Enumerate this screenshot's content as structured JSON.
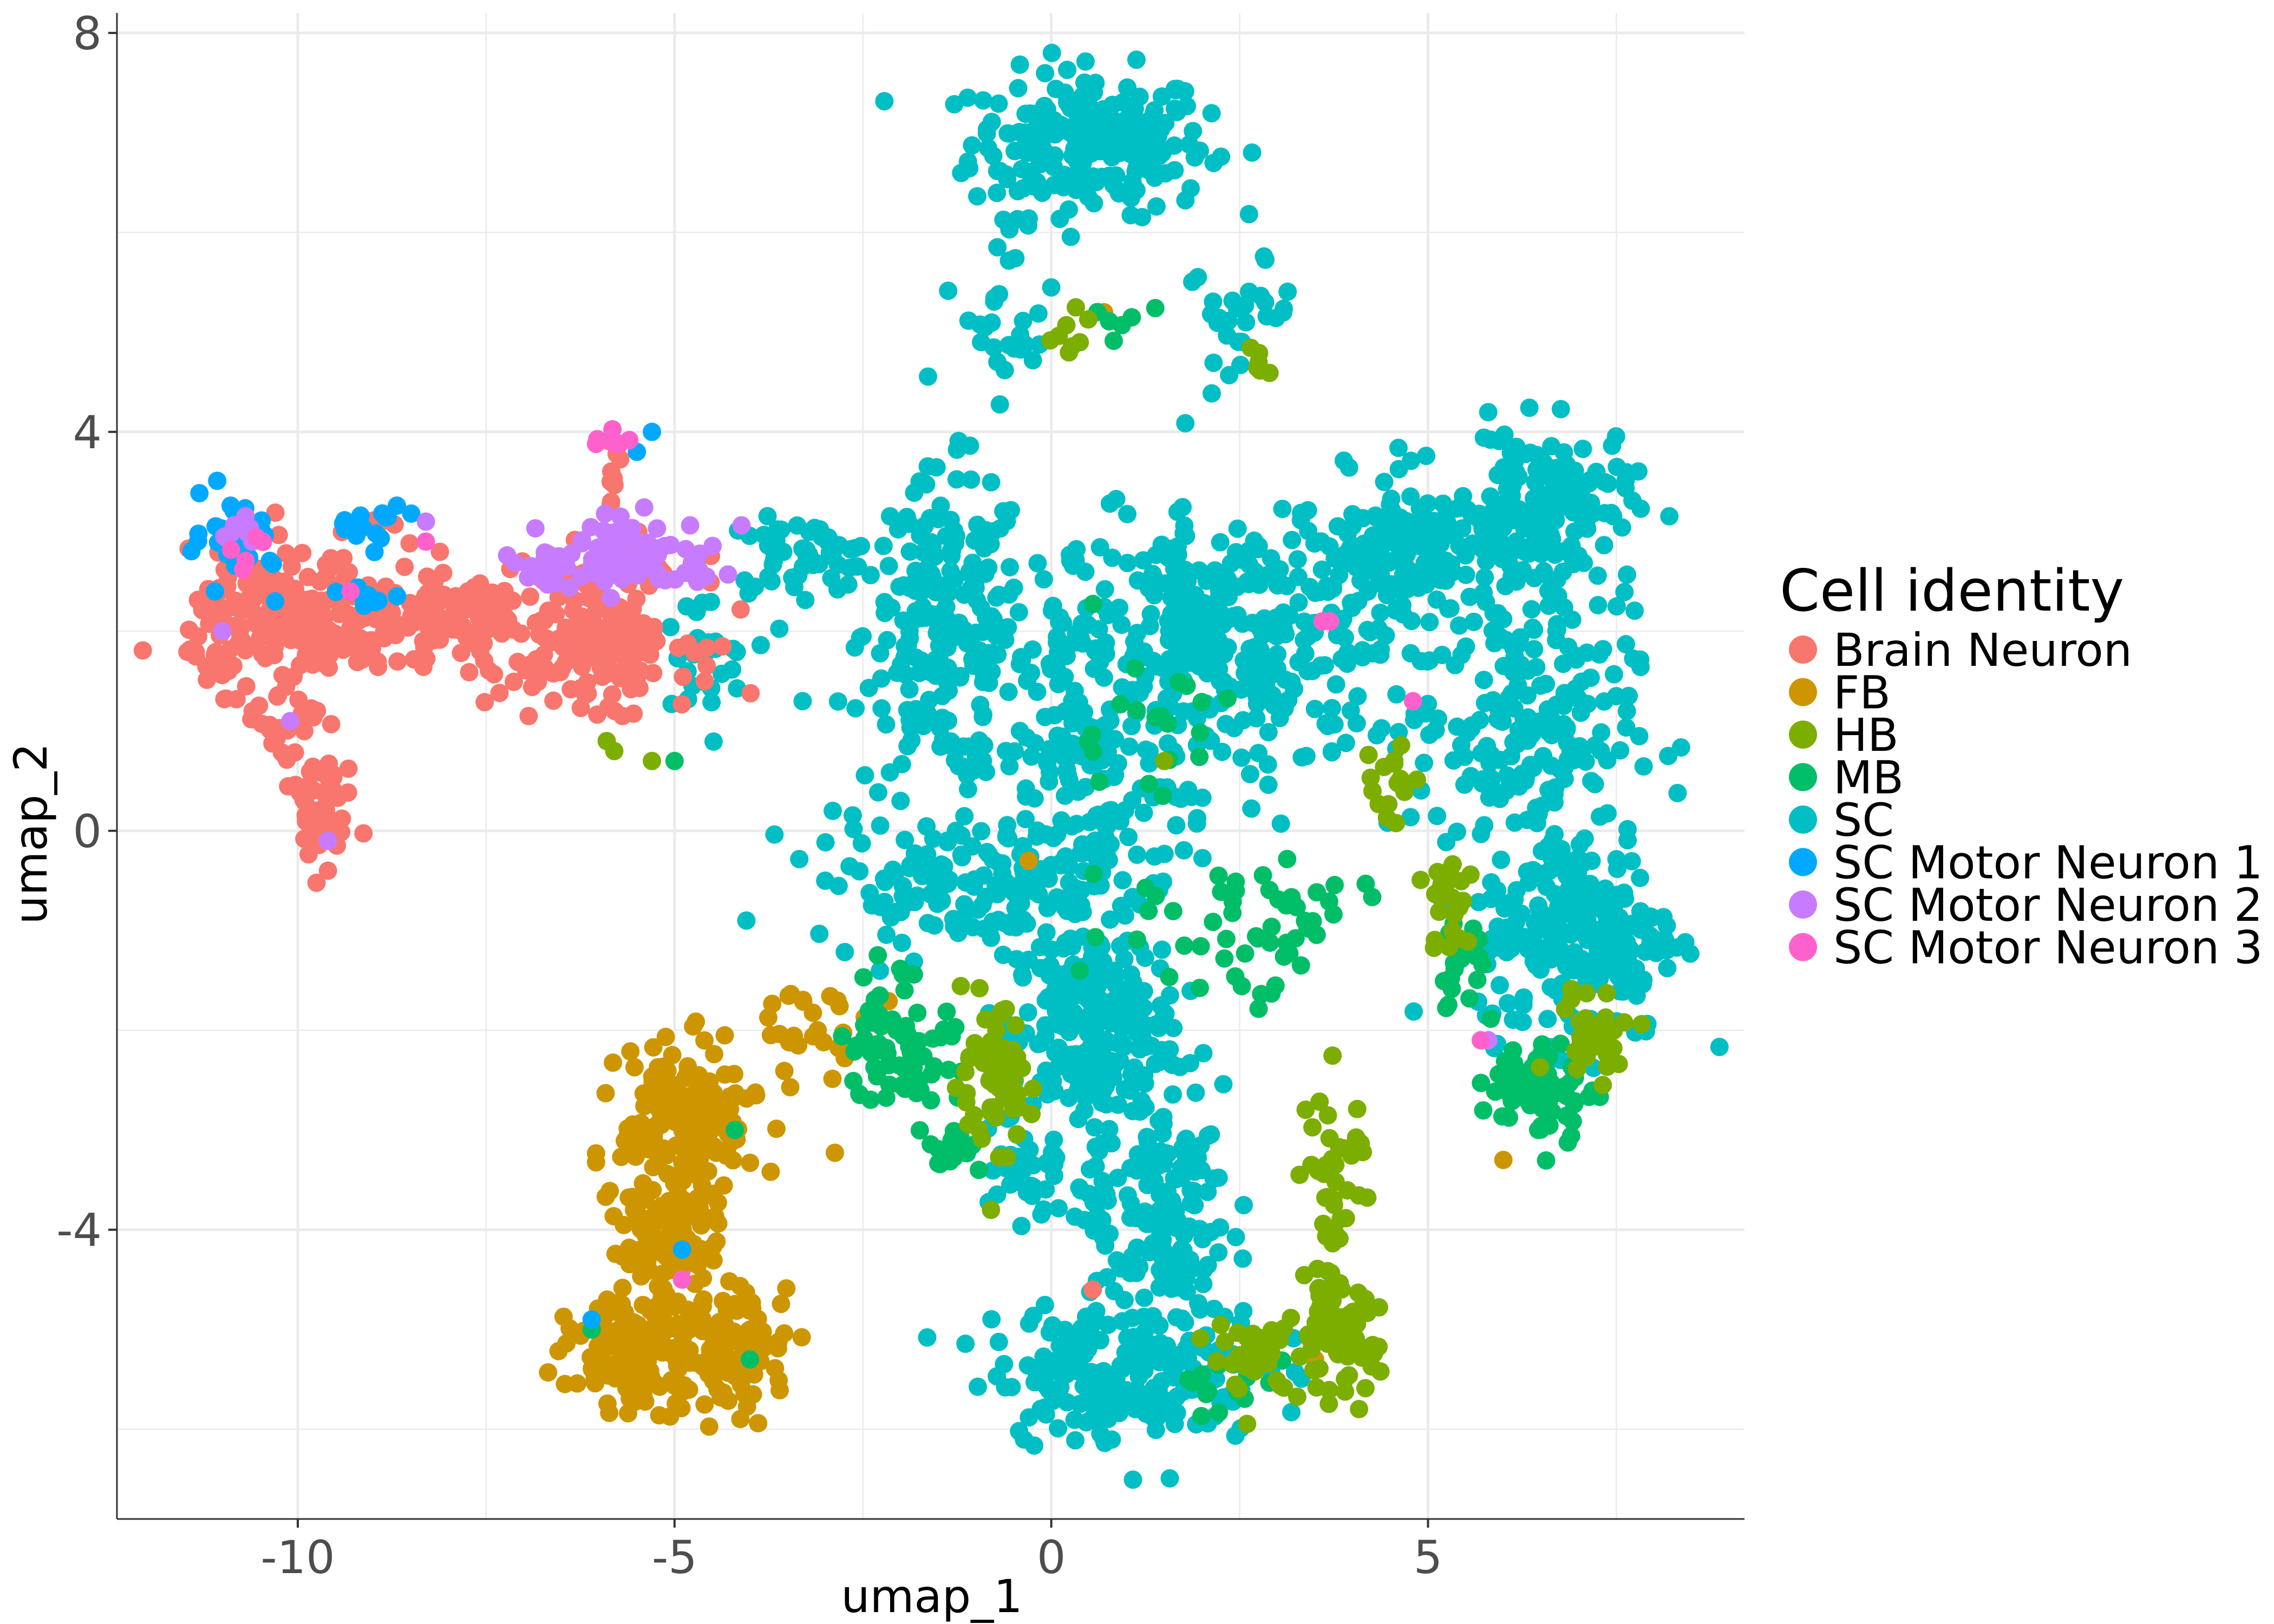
{
  "chart_data": {
    "type": "scatter",
    "title": "",
    "xlabel": "umap_1",
    "ylabel": "umap_2",
    "xlim": [
      -12.4,
      9.2
    ],
    "ylim": [
      -6.9,
      8.2
    ],
    "x_ticks": [
      -10,
      -5,
      0,
      5
    ],
    "x_tick_labels": [
      "-10",
      "-5",
      "0",
      "5"
    ],
    "y_ticks": [
      8,
      4,
      0,
      -4
    ],
    "y_tick_labels": [
      "8",
      "4",
      "0",
      "-4"
    ],
    "grid": true,
    "legend": {
      "title": "Cell identity",
      "placement": "right",
      "entries": [
        "Brain Neuron",
        "FB",
        "HB",
        "MB",
        "SC",
        "SC Motor Neuron 1",
        "SC Motor Neuron 2",
        "SC Motor Neuron 3"
      ]
    },
    "series": [
      {
        "name": "Brain Neuron",
        "color": "#F8766D",
        "regions": [
          {
            "cx": -10.0,
            "cy": 2.1,
            "rx": 1.2,
            "ry": 0.55,
            "n": 230
          },
          {
            "cx": -7.9,
            "cy": 2.1,
            "rx": 0.9,
            "ry": 0.45,
            "n": 90
          },
          {
            "cx": -6.0,
            "cy": 2.0,
            "rx": 1.05,
            "ry": 0.6,
            "n": 200
          },
          {
            "cx": -9.7,
            "cy": 0.2,
            "rx": 0.35,
            "ry": 0.5,
            "n": 45
          },
          {
            "cx": -10.2,
            "cy": 1.0,
            "rx": 0.3,
            "ry": 0.45,
            "n": 25
          },
          {
            "cx": -5.8,
            "cy": 3.6,
            "rx": 0.15,
            "ry": 0.3,
            "n": 10
          },
          {
            "cx": -8.9,
            "cy": 3.1,
            "rx": 0.25,
            "ry": 0.12,
            "n": 8
          }
        ],
        "points": [
          [
            -9.6,
            -0.4
          ],
          [
            -10.6,
            1.2
          ],
          [
            -4.6,
            1.5
          ],
          [
            0.55,
            -4.6
          ],
          [
            -4.9,
            -4.4
          ]
        ]
      },
      {
        "name": "FB",
        "color": "#CD9600",
        "regions": [
          {
            "cx": -4.8,
            "cy": -2.9,
            "rx": 0.75,
            "ry": 0.6,
            "n": 170
          },
          {
            "cx": -5.1,
            "cy": -4.1,
            "rx": 0.6,
            "ry": 0.6,
            "n": 110
          },
          {
            "cx": -5.45,
            "cy": -5.25,
            "rx": 0.8,
            "ry": 0.45,
            "n": 150
          },
          {
            "cx": -4.1,
            "cy": -5.2,
            "rx": 0.55,
            "ry": 0.55,
            "n": 80
          },
          {
            "cx": -3.2,
            "cy": -2.0,
            "rx": 0.7,
            "ry": 0.35,
            "n": 25
          }
        ],
        "points": [
          [
            0.7,
            5.2
          ],
          [
            -0.3,
            -0.3
          ],
          [
            6.0,
            -3.3
          ],
          [
            3.5,
            -5.3
          ],
          [
            -3.1,
            -2.0
          ]
        ]
      },
      {
        "name": "HB",
        "color": "#7CAE00",
        "regions": [
          {
            "cx": -0.8,
            "cy": -2.5,
            "rx": 0.45,
            "ry": 0.55,
            "n": 65
          },
          {
            "cx": 3.8,
            "cy": -5.1,
            "rx": 0.45,
            "ry": 0.45,
            "n": 70
          },
          {
            "cx": 3.75,
            "cy": -3.6,
            "rx": 0.35,
            "ry": 1.0,
            "n": 45
          },
          {
            "cx": 2.7,
            "cy": -5.25,
            "rx": 0.5,
            "ry": 0.35,
            "n": 30
          },
          {
            "cx": 7.2,
            "cy": -2.0,
            "rx": 0.5,
            "ry": 0.35,
            "n": 30
          },
          {
            "cx": 5.3,
            "cy": -0.8,
            "rx": 0.35,
            "ry": 0.6,
            "n": 25
          },
          {
            "cx": 0.3,
            "cy": 5.0,
            "rx": 0.3,
            "ry": 0.3,
            "n": 8
          },
          {
            "cx": 2.8,
            "cy": 4.7,
            "rx": 0.15,
            "ry": 0.25,
            "n": 6
          },
          {
            "cx": 4.5,
            "cy": 0.5,
            "rx": 0.35,
            "ry": 0.35,
            "n": 15
          }
        ],
        "points": [
          [
            -5.8,
            0.8
          ],
          [
            -5.3,
            0.7
          ],
          [
            -5.9,
            0.9
          ],
          [
            1.5,
            0.7
          ],
          [
            -0.8,
            -3.8
          ]
        ]
      },
      {
        "name": "MB",
        "color": "#00BE67",
        "regions": [
          {
            "cx": -2.0,
            "cy": -2.1,
            "rx": 0.6,
            "ry": 0.6,
            "n": 75
          },
          {
            "cx": -1.3,
            "cy": -3.2,
            "rx": 0.3,
            "ry": 0.25,
            "n": 20
          },
          {
            "cx": 6.5,
            "cy": -2.6,
            "rx": 0.55,
            "ry": 0.4,
            "n": 75
          },
          {
            "cx": 5.5,
            "cy": -1.3,
            "rx": 0.35,
            "ry": 0.45,
            "n": 20
          },
          {
            "cx": 2.0,
            "cy": -1.0,
            "rx": 1.3,
            "ry": 0.6,
            "n": 35
          },
          {
            "cx": 1.3,
            "cy": 1.0,
            "rx": 1.0,
            "ry": 0.7,
            "n": 20
          },
          {
            "cx": 3.2,
            "cy": -0.8,
            "rx": 0.8,
            "ry": 0.6,
            "n": 20
          },
          {
            "cx": 2.4,
            "cy": -5.5,
            "rx": 0.9,
            "ry": 0.3,
            "n": 18
          },
          {
            "cx": 0.8,
            "cy": 5.0,
            "rx": 0.4,
            "ry": 0.3,
            "n": 6
          }
        ],
        "points": [
          [
            -6.1,
            -5.0
          ],
          [
            -4.0,
            -5.3
          ],
          [
            -5.0,
            0.7
          ],
          [
            -4.2,
            -3.0
          ]
        ]
      },
      {
        "name": "SC",
        "color": "#00BFC4",
        "regions": [
          {
            "cx": 0.5,
            "cy": 6.9,
            "rx": 1.3,
            "ry": 0.6,
            "n": 230
          },
          {
            "cx": -0.5,
            "cy": 5.3,
            "rx": 0.5,
            "ry": 0.8,
            "n": 30
          },
          {
            "cx": 2.5,
            "cy": 5.2,
            "rx": 0.6,
            "ry": 0.4,
            "n": 30
          },
          {
            "cx": -1.4,
            "cy": 2.0,
            "rx": 0.9,
            "ry": 1.3,
            "n": 210
          },
          {
            "cx": -3.3,
            "cy": 2.75,
            "rx": 0.9,
            "ry": 0.3,
            "n": 60
          },
          {
            "cx": -4.7,
            "cy": 1.7,
            "rx": 0.6,
            "ry": 0.6,
            "n": 30
          },
          {
            "cx": 0.4,
            "cy": 0.8,
            "rx": 1.2,
            "ry": 1.8,
            "n": 220
          },
          {
            "cx": 2.5,
            "cy": 1.8,
            "rx": 1.8,
            "ry": 1.1,
            "n": 260
          },
          {
            "cx": 5.0,
            "cy": 2.7,
            "rx": 1.6,
            "ry": 0.7,
            "n": 230
          },
          {
            "cx": 6.6,
            "cy": 3.3,
            "rx": 0.9,
            "ry": 0.6,
            "n": 130
          },
          {
            "cx": 6.3,
            "cy": 1.0,
            "rx": 1.2,
            "ry": 1.0,
            "n": 180
          },
          {
            "cx": 7.0,
            "cy": -1.0,
            "rx": 1.1,
            "ry": 0.9,
            "n": 230
          },
          {
            "cx": 1.9,
            "cy": 2.3,
            "rx": 0.4,
            "ry": 1.2,
            "n": 40
          },
          {
            "cx": -1.2,
            "cy": -0.5,
            "rx": 1.7,
            "ry": 0.5,
            "n": 130
          },
          {
            "cx": 0.5,
            "cy": -2.0,
            "rx": 0.9,
            "ry": 0.9,
            "n": 220
          },
          {
            "cx": 1.4,
            "cy": -3.8,
            "rx": 0.8,
            "ry": 1.0,
            "n": 150
          },
          {
            "cx": 1.0,
            "cy": -5.4,
            "rx": 1.5,
            "ry": 0.6,
            "n": 220
          },
          {
            "cx": -0.4,
            "cy": -3.4,
            "rx": 0.5,
            "ry": 0.5,
            "n": 40
          }
        ],
        "points": [
          [
            -2.9,
            0.2
          ],
          [
            -3.3,
            1.3
          ],
          [
            -2.0,
            0.3
          ],
          [
            -3.0,
            -0.5
          ]
        ]
      },
      {
        "name": "SC Motor Neuron 1",
        "color": "#00A9FF",
        "regions": [
          {
            "cx": -10.8,
            "cy": 3.0,
            "rx": 0.4,
            "ry": 0.3,
            "n": 45
          },
          {
            "cx": -9.0,
            "cy": 3.1,
            "rx": 0.4,
            "ry": 0.15,
            "n": 15
          },
          {
            "cx": -9.0,
            "cy": 2.3,
            "rx": 0.5,
            "ry": 0.15,
            "n": 8
          }
        ],
        "points": [
          [
            -5.3,
            4.0
          ],
          [
            -5.5,
            3.8
          ],
          [
            -11.1,
            2.4
          ],
          [
            -10.3,
            2.3
          ],
          [
            -6.1,
            -4.9
          ],
          [
            -4.9,
            -4.2
          ],
          [
            -5.8,
            3.9
          ]
        ]
      },
      {
        "name": "SC Motor Neuron 2",
        "color": "#C77CFF",
        "regions": [
          {
            "cx": -5.6,
            "cy": 2.75,
            "rx": 1.0,
            "ry": 0.3,
            "n": 95
          },
          {
            "cx": -6.8,
            "cy": 2.6,
            "rx": 0.4,
            "ry": 0.15,
            "n": 15
          },
          {
            "cx": -10.7,
            "cy": 3.0,
            "rx": 0.3,
            "ry": 0.2,
            "n": 8
          }
        ],
        "points": [
          [
            -8.3,
            3.1
          ],
          [
            -10.1,
            1.1
          ],
          [
            -9.6,
            -0.1
          ],
          [
            -11.0,
            2.0
          ],
          [
            5.8,
            -2.1
          ]
        ]
      },
      {
        "name": "SC Motor Neuron 3",
        "color": "#FF61CC",
        "regions": [
          {
            "cx": -5.8,
            "cy": 3.9,
            "rx": 0.25,
            "ry": 0.1,
            "n": 8
          },
          {
            "cx": -10.6,
            "cy": 2.8,
            "rx": 0.2,
            "ry": 0.2,
            "n": 5
          }
        ],
        "points": [
          [
            3.6,
            2.1
          ],
          [
            3.7,
            2.1
          ],
          [
            4.8,
            1.3
          ],
          [
            -4.9,
            -4.5
          ],
          [
            5.7,
            -2.1
          ],
          [
            -9.3,
            2.4
          ],
          [
            -8.3,
            2.9
          ]
        ]
      }
    ]
  }
}
